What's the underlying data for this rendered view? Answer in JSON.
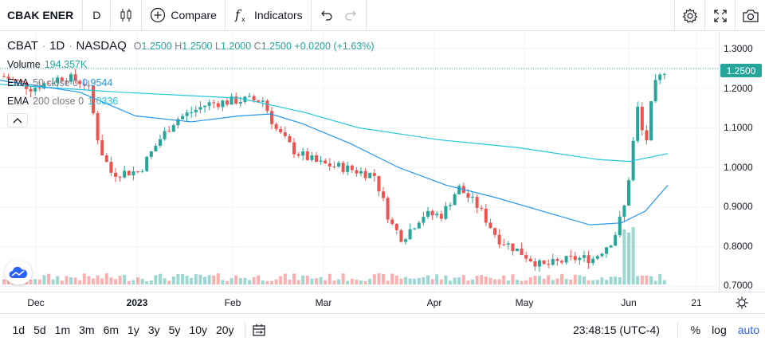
{
  "toolbar": {
    "symbol": "CBAK ENER",
    "interval": "D",
    "compare_label": "Compare",
    "indicators_label": "Indicators"
  },
  "legend": {
    "ticker": "CBAT",
    "interval": "1D",
    "exchange": "NASDAQ",
    "o_label": "O",
    "o_value": "1.2500",
    "h_label": "H",
    "h_value": "1.2500",
    "l_label": "L",
    "l_value": "1.2000",
    "c_label": "C",
    "c_value": "1.2500",
    "change": "+0.0200 (+1.63%)",
    "volume_label": "Volume",
    "volume_value": "194.357K",
    "ema50_label": "EMA",
    "ema50_params": "50 close 0",
    "ema50_value": "0.9544",
    "ema200_label": "EMA",
    "ema200_params": "200 close 0",
    "ema200_value": "1.0336"
  },
  "price_scale": [
    "1.3000",
    "1.2000",
    "1.1000",
    "1.0000",
    "0.9000",
    "0.8000",
    "0.7000"
  ],
  "last_price": "1.2500",
  "time_scale": [
    "Dec",
    "2023",
    "Feb",
    "Mar",
    "Apr",
    "May",
    "Jun",
    "21"
  ],
  "bottom": {
    "ranges": [
      "1d",
      "5d",
      "1m",
      "3m",
      "6m",
      "1y",
      "3y",
      "5y",
      "10y",
      "20y"
    ],
    "clock": "23:48:15 (UTC-4)",
    "percent_label": "%",
    "log_label": "log",
    "auto_label": "auto"
  },
  "colors": {
    "up": "#26a69a",
    "down": "#ef5350",
    "ema50": "#2196f3",
    "ema200": "#26c6da"
  },
  "chart_data": {
    "type": "candlestick",
    "price_range": [
      0.68,
      1.33
    ],
    "last_price": 1.25,
    "ema50_last": 0.9544,
    "ema200_last": 1.0336
  }
}
